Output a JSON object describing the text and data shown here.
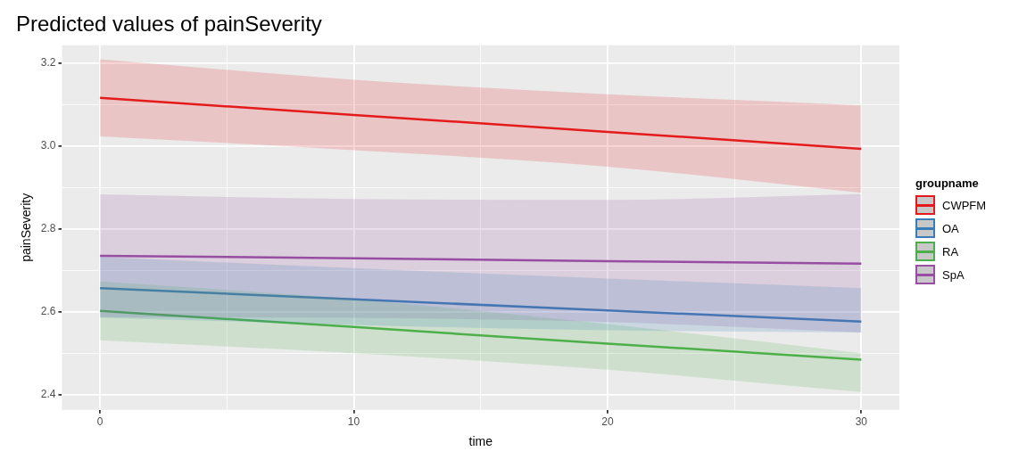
{
  "chart_data": {
    "type": "line",
    "title": "Predicted values of painSeverity",
    "xlabel": "time",
    "ylabel": "painSeverity",
    "legend_title": "groupname",
    "legend": "right",
    "grid": true,
    "marker": "none",
    "line_style": "solid",
    "x": [
      0,
      10,
      20,
      30
    ],
    "xlim": [
      -1.5,
      31.5
    ],
    "xticks": [
      0,
      {
        "value": 5,
        "label": null
      },
      10,
      {
        "value": 15,
        "label": null
      },
      20,
      {
        "value": 25,
        "label": null
      },
      30
    ],
    "ylim": [
      2.363,
      3.243
    ],
    "yticks": [
      {
        "value": 2.4,
        "label": "2.4"
      },
      {
        "value": 2.5,
        "label": null
      },
      {
        "value": 2.6,
        "label": "2.6"
      },
      {
        "value": 2.7,
        "label": null
      },
      {
        "value": 2.8,
        "label": "2.8"
      },
      {
        "value": 2.9,
        "label": null
      },
      {
        "value": 3.0,
        "label": "3.0"
      },
      {
        "value": 3.1,
        "label": null
      },
      {
        "value": 3.2,
        "label": "3.2"
      }
    ],
    "series": [
      {
        "name": "CWPFM",
        "color": "#e41a1c",
        "values": [
          3.116,
          3.075,
          3.034,
          2.993
        ],
        "lower": [
          3.023,
          2.99,
          2.95,
          2.887
        ],
        "upper": [
          3.209,
          3.16,
          3.125,
          3.098
        ]
      },
      {
        "name": "OA",
        "color": "#377eb8",
        "values": [
          2.657,
          2.63,
          2.603,
          2.576
        ],
        "lower": [
          2.586,
          2.568,
          2.555,
          2.55
        ],
        "upper": [
          2.732,
          2.705,
          2.68,
          2.657
        ]
      },
      {
        "name": "RA",
        "color": "#4daf4a",
        "values": [
          2.602,
          2.563,
          2.523,
          2.484
        ],
        "lower": [
          2.531,
          2.5,
          2.46,
          2.406
        ],
        "upper": [
          2.673,
          2.63,
          2.57,
          2.5
        ]
      },
      {
        "name": "SpA",
        "color": "#984ea3",
        "values": [
          2.735,
          2.729,
          2.722,
          2.716
        ],
        "lower": [
          2.587,
          2.585,
          2.575,
          2.55
        ],
        "upper": [
          2.883,
          2.872,
          2.87,
          2.884
        ]
      }
    ]
  }
}
